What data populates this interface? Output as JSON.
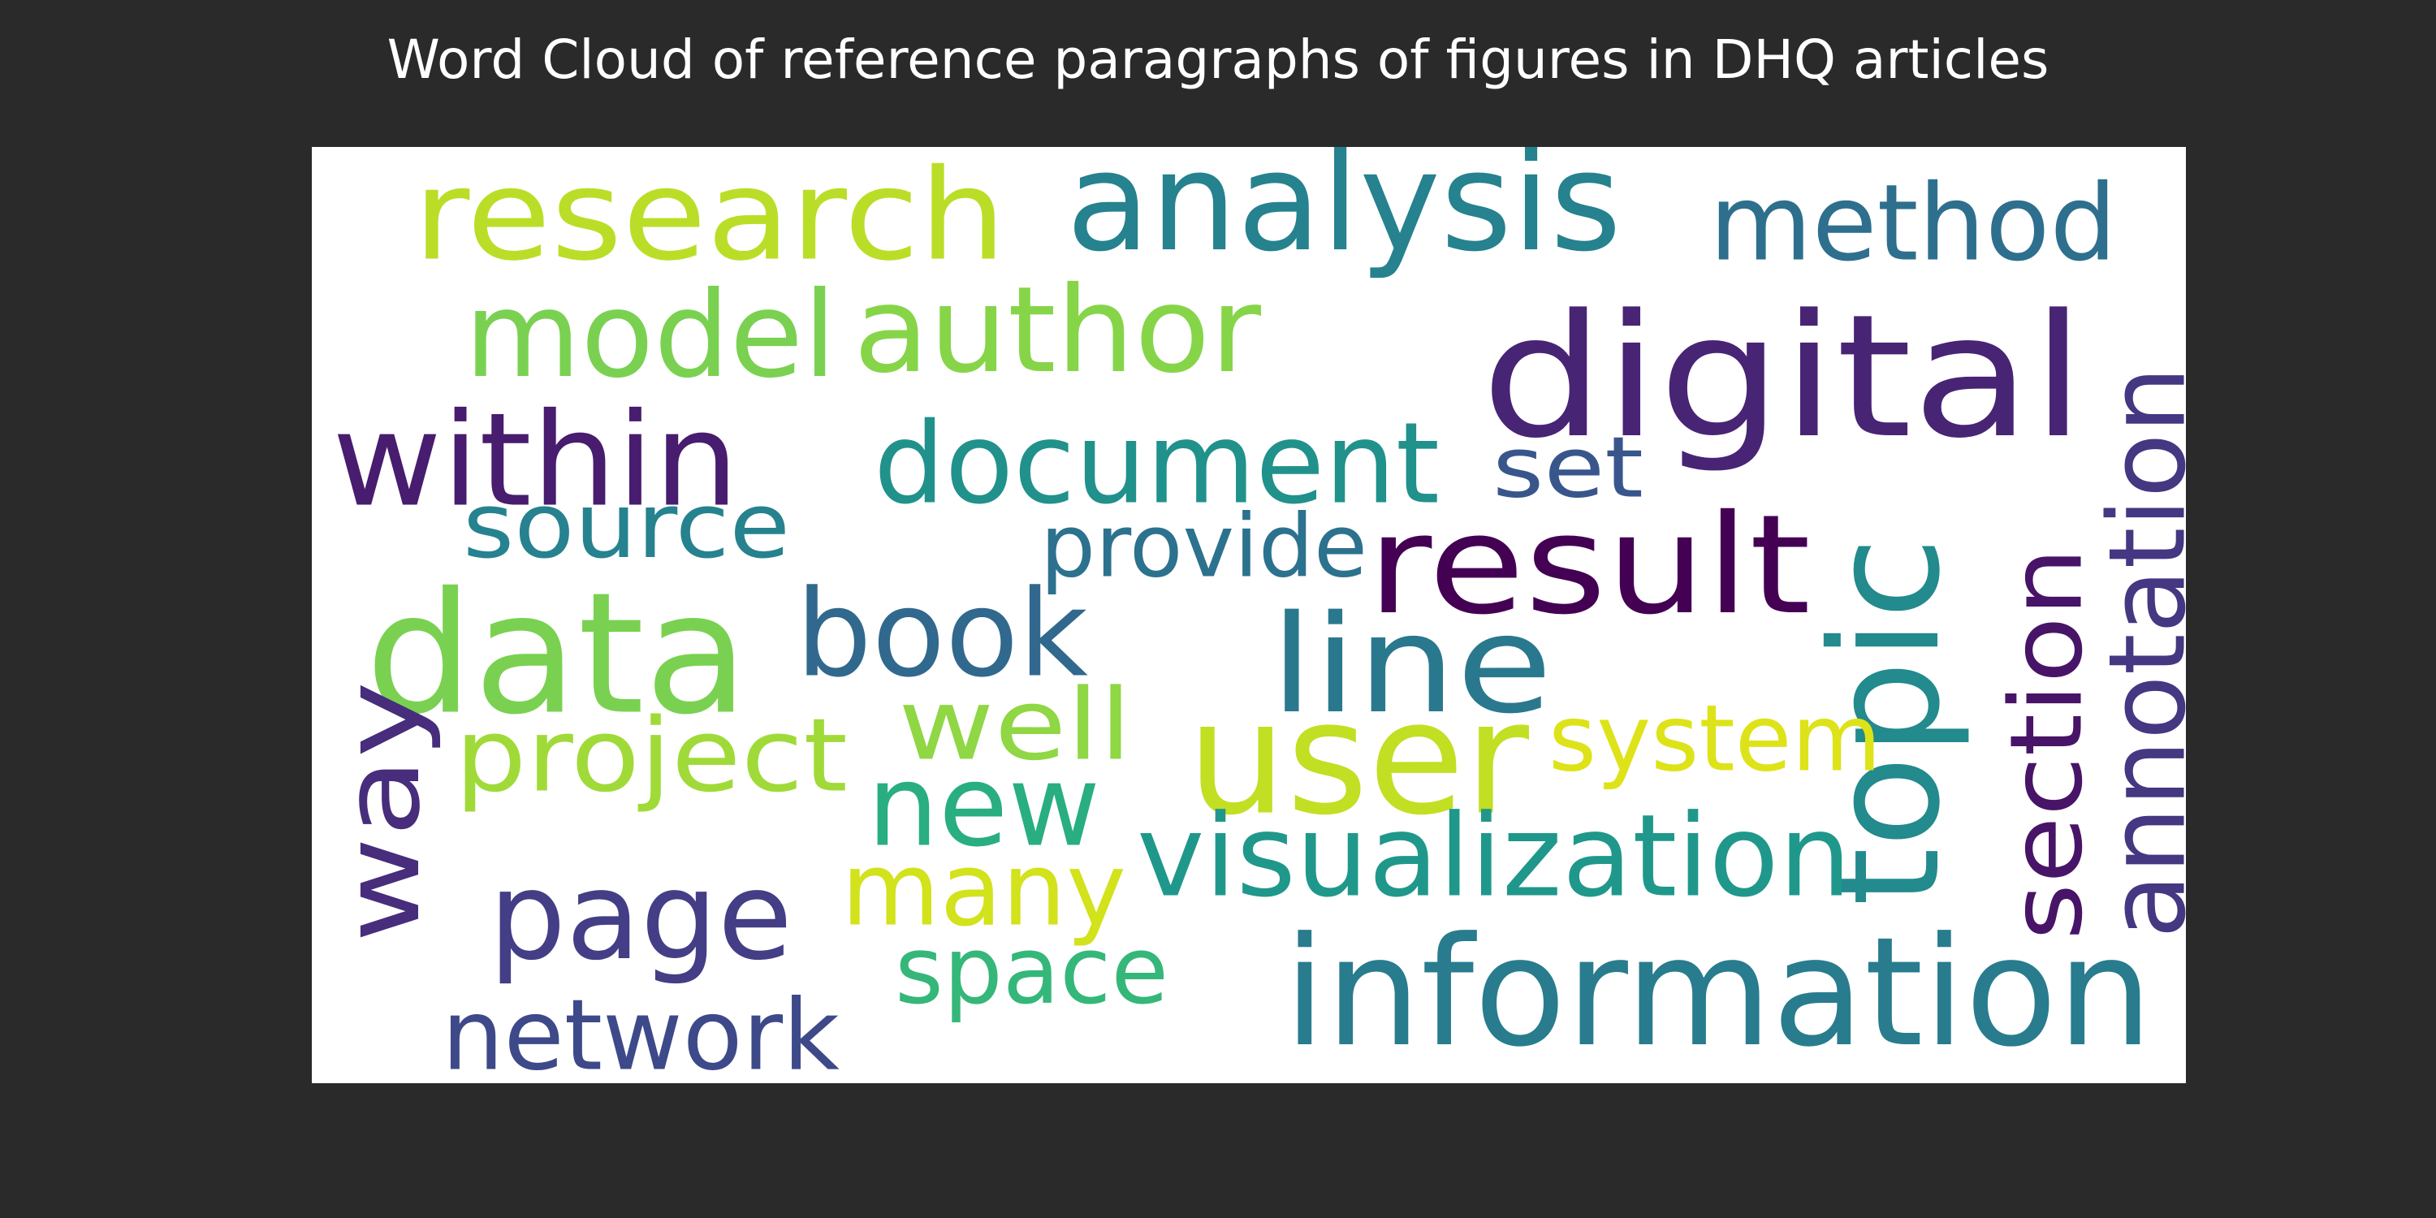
{
  "chart_data": {
    "type": "wordcloud",
    "title": "Word Cloud of reference paragraphs of figures in DHQ articles",
    "colormap": "viridis",
    "background": "#ffffff",
    "figure_background": "#2a2a2a",
    "words": [
      {
        "text": "research",
        "color": "#bade28"
      },
      {
        "text": "analysis",
        "color": "#25828e"
      },
      {
        "text": "method",
        "color": "#2e6f8e"
      },
      {
        "text": "model",
        "color": "#7ad151"
      },
      {
        "text": "author",
        "color": "#86d549"
      },
      {
        "text": "digital",
        "color": "#482475"
      },
      {
        "text": "within",
        "color": "#481c6e"
      },
      {
        "text": "document",
        "color": "#21918c"
      },
      {
        "text": "set",
        "color": "#39568c"
      },
      {
        "text": "annotation",
        "color": "#453781"
      },
      {
        "text": "source",
        "color": "#26828e"
      },
      {
        "text": "provide",
        "color": "#2c728e"
      },
      {
        "text": "result",
        "color": "#440154"
      },
      {
        "text": "data",
        "color": "#7ad151"
      },
      {
        "text": "book",
        "color": "#31688e"
      },
      {
        "text": "line",
        "color": "#2a788e"
      },
      {
        "text": "topic",
        "color": "#238a8d"
      },
      {
        "text": "section",
        "color": "#481467"
      },
      {
        "text": "way",
        "color": "#472d7b"
      },
      {
        "text": "well",
        "color": "#8fd744"
      },
      {
        "text": "user",
        "color": "#c2df23"
      },
      {
        "text": "system",
        "color": "#dde318"
      },
      {
        "text": "project",
        "color": "#a0da39"
      },
      {
        "text": "new",
        "color": "#28ae80"
      },
      {
        "text": "many",
        "color": "#d2e21b"
      },
      {
        "text": "visualization",
        "color": "#1f988b"
      },
      {
        "text": "page",
        "color": "#433e85"
      },
      {
        "text": "space",
        "color": "#35b779"
      },
      {
        "text": "information",
        "color": "#287c8e"
      },
      {
        "text": "network",
        "color": "#3e4989"
      }
    ]
  }
}
